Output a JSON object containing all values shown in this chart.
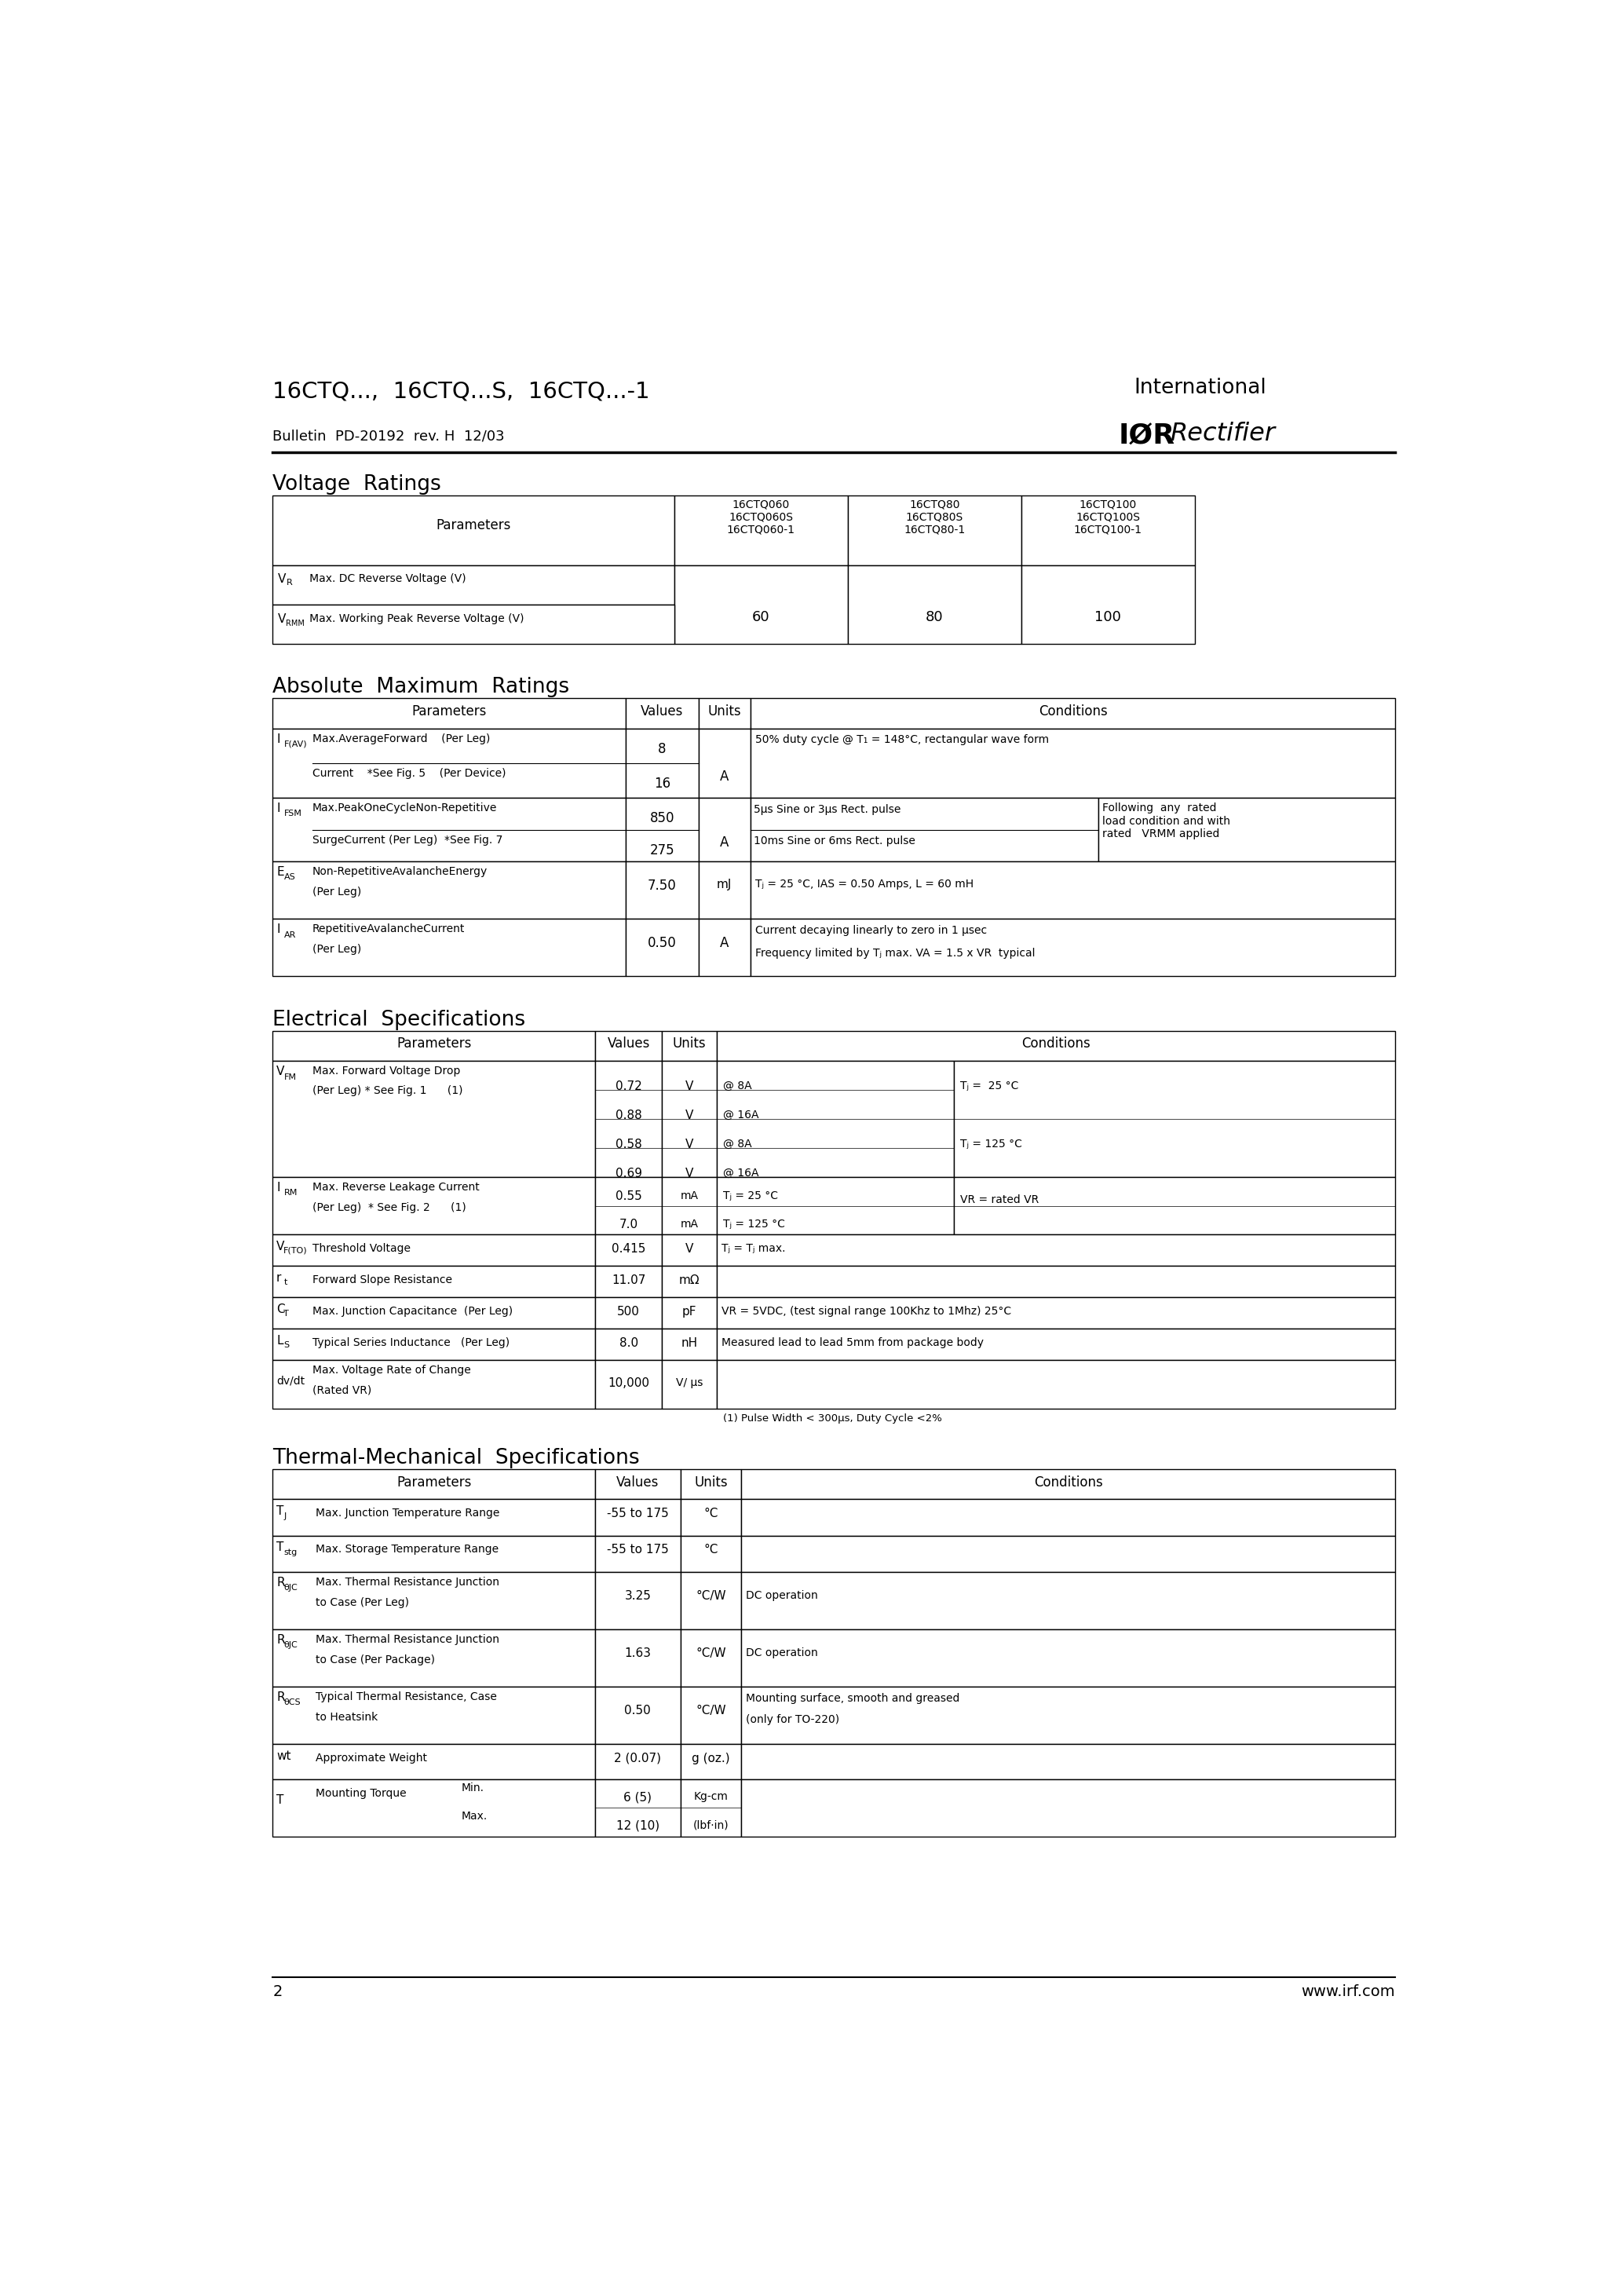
{
  "bg_color": "#ffffff",
  "LM": 115,
  "RM": 1960,
  "page_title": "16CTQ...,  16CTQ...S,  16CTQ...-1",
  "bulletin": "Bulletin  PD-20192  rev. H  12/03",
  "intl": "International",
  "rectifier": "IØR Rectifier",
  "page_num": "2",
  "website": "www.irf.com"
}
